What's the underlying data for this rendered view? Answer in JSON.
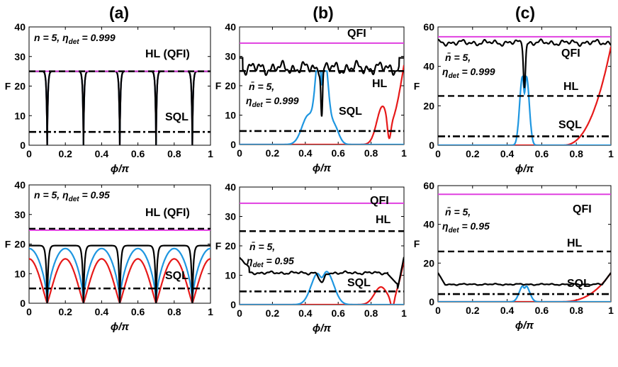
{
  "figure": {
    "column_labels": [
      "(a)",
      "(b)",
      "(c)"
    ],
    "ylabel": "F",
    "xlabel": "ϕ/π"
  },
  "colors": {
    "qfi": "#e040e0",
    "hl": "#000000",
    "sql": "#000000",
    "total": "#000000",
    "blue": "#1e96e0",
    "red": "#e61919"
  },
  "chart_data": [
    {
      "type": "line",
      "id": "a1",
      "title": "(a)",
      "xlim": [
        0,
        1
      ],
      "ylim": [
        0,
        40
      ],
      "xticks": [
        "0",
        "0.2",
        "0.4",
        "0.6",
        "0.8",
        "1"
      ],
      "yticks": [
        "0",
        "10",
        "20",
        "30",
        "40"
      ],
      "params": [
        "n = 5, ",
        "η",
        "det",
        " = 0.999"
      ],
      "qfi": 25,
      "hl": 25,
      "sql": 4.5,
      "labels": {
        "hl": "HL (QFI)",
        "sql": "SQL"
      },
      "curves": {
        "total": "dips_a",
        "blue": "dips_a",
        "red": "dips_a"
      }
    },
    {
      "type": "line",
      "id": "b1",
      "title": "(b)",
      "xlim": [
        0,
        1
      ],
      "ylim": [
        0,
        40
      ],
      "xticks": [
        "0",
        "0.2",
        "0.4",
        "0.6",
        "0.8",
        "1"
      ],
      "yticks": [
        "0",
        "10",
        "20",
        "30",
        "40"
      ],
      "params": [
        "n̄ = 5,",
        "η",
        "det",
        " = 0.999"
      ],
      "qfi": 34.5,
      "hl": 25,
      "sql": 4.6,
      "labels": {
        "qfi": "QFI",
        "hl": "HL",
        "sql": "SQL"
      },
      "curves": {
        "total": "noisy_b1",
        "blue": "peak_b1",
        "red": "rise_b1"
      }
    },
    {
      "type": "line",
      "id": "c1",
      "title": "(c)",
      "xlim": [
        0,
        1
      ],
      "ylim": [
        0,
        60
      ],
      "xticks": [
        "0",
        "0.2",
        "0.4",
        "0.6",
        "0.8",
        "1"
      ],
      "yticks": [
        "0",
        "20",
        "40",
        "60"
      ],
      "params": [
        "n̄ = 5,",
        "η",
        "det",
        " = 0.999"
      ],
      "qfi": 55,
      "hl": 25,
      "sql": 4.5,
      "labels": {
        "qfi": "QFI",
        "hl": "HL",
        "sql": "SQL"
      },
      "curves": {
        "total": "noisy_c1",
        "blue": "peak_c1",
        "red": "rise_c1"
      }
    },
    {
      "type": "line",
      "id": "a2",
      "xlim": [
        0,
        1
      ],
      "ylim": [
        0,
        40
      ],
      "xticks": [
        "0",
        "0.2",
        "0.4",
        "0.6",
        "0.8",
        "1"
      ],
      "yticks": [
        "0",
        "10",
        "20",
        "30",
        "40"
      ],
      "params": [
        "n = 5, ",
        "η",
        "det",
        " = 0.95"
      ],
      "qfi": 24.7,
      "hl": 25.2,
      "sql": 5,
      "labels": {
        "hl": "HL (QFI)",
        "sql": "SQL"
      },
      "curves": {
        "total": "arch_total_a2",
        "blue": "arch_blue_a2",
        "red": "arch_red_a2"
      }
    },
    {
      "type": "line",
      "id": "b2",
      "xlim": [
        0,
        1
      ],
      "ylim": [
        0,
        40
      ],
      "xticks": [
        "0",
        "0.2",
        "0.4",
        "0.6",
        "0.8",
        "1"
      ],
      "yticks": [
        "0",
        "10",
        "20",
        "30",
        "40"
      ],
      "params": [
        "n̄ = 5,",
        "η",
        "det",
        " = 0.95"
      ],
      "qfi": 34.5,
      "hl": 25,
      "sql": 4.5,
      "labels": {
        "qfi": "QFI",
        "hl": "HL",
        "sql": "SQL"
      },
      "curves": {
        "total": "flat_b2",
        "blue": "peak_b2",
        "red": "rise_b2"
      }
    },
    {
      "type": "line",
      "id": "c2",
      "xlim": [
        0,
        1
      ],
      "ylim": [
        0,
        60
      ],
      "xticks": [
        "0",
        "0.2",
        "0.4",
        "0.6",
        "0.8",
        "1"
      ],
      "yticks": [
        "0",
        "20",
        "40",
        "60"
      ],
      "params": [
        "n̄ = 5,",
        "η",
        "det",
        " = 0.95"
      ],
      "qfi": 55.5,
      "hl": 26,
      "sql": 4,
      "labels": {
        "qfi": "QFI",
        "hl": "HL",
        "sql": "SQL"
      },
      "curves": {
        "total": "flat_c2",
        "blue": "peak_c2",
        "red": "rise_c2"
      }
    }
  ]
}
